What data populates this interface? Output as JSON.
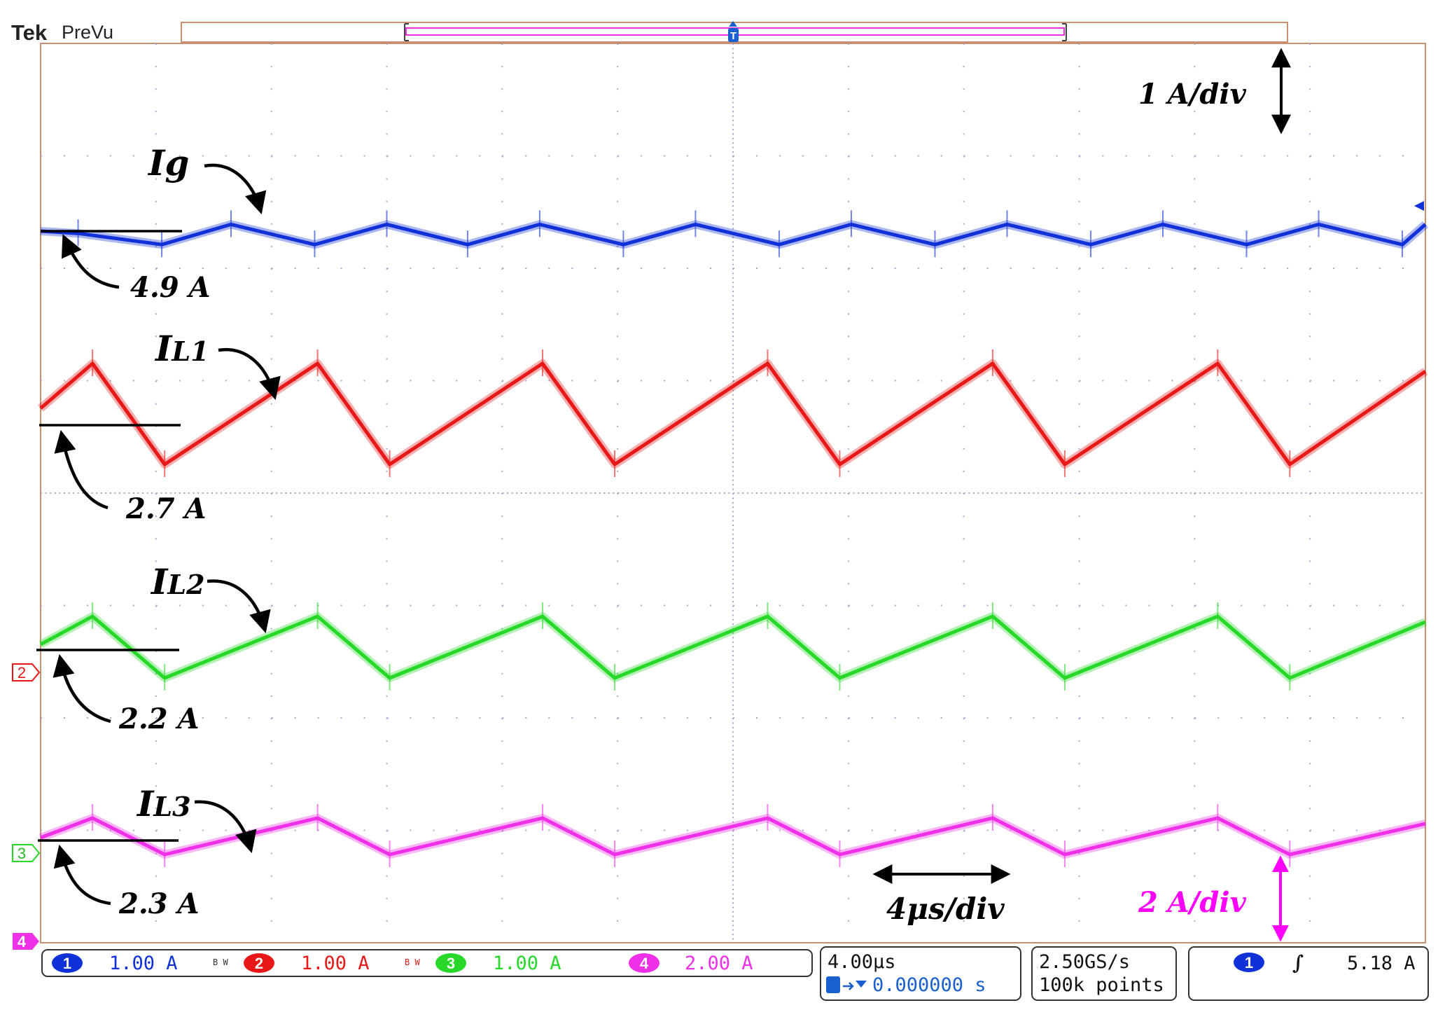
{
  "header": {
    "brand": "Tek",
    "mode": "PreVu",
    "trigger_marker": "T"
  },
  "annotations": {
    "vertical_scale_top": "1 A/div",
    "vertical_scale_bottom": "2 A/div",
    "time_scale": "4μs/div",
    "trace_labels": [
      {
        "main": "I",
        "sub": "g",
        "subscript": false
      },
      {
        "main": "I",
        "sub": "L1",
        "subscript": true
      },
      {
        "main": "I",
        "sub": "L2",
        "subscript": true
      },
      {
        "main": "I",
        "sub": "L3",
        "subscript": true
      }
    ],
    "reference_values": [
      "4.9 A",
      "2.7 A",
      "2.2 A",
      "2.3 A"
    ]
  },
  "status_bar": {
    "channels": [
      {
        "number": "1",
        "scale": "1.00 A",
        "bw": "B W",
        "color": "#1030d8"
      },
      {
        "number": "2",
        "scale": "1.00 A",
        "bw": "B W",
        "color": "#e81818"
      },
      {
        "number": "3",
        "scale": "1.00 A",
        "bw": "",
        "color": "#28d828"
      },
      {
        "number": "4",
        "scale": "2.00 A",
        "bw": "",
        "color": "#f030e8"
      }
    ],
    "timebase": "4.00μs",
    "position": "0.000000 s",
    "sample_rate": "2.50GS/s",
    "record_length": "100k points",
    "trigger_channel": "1",
    "trigger_slope": "∫",
    "trigger_level": "5.18 A"
  },
  "channel_markers": [
    "2",
    "3",
    "4"
  ],
  "colors": {
    "ch1": "#1030d8",
    "ch2": "#e81818",
    "ch3": "#28d828",
    "ch4": "#f030e8",
    "grid": "#a8a8c8",
    "frame": "#c89070"
  },
  "chart_data": {
    "type": "line",
    "title": "",
    "xlabel": "",
    "ylabel": "",
    "x_unit": "μs",
    "xlim": [
      -24,
      24
    ],
    "x_divisions": 12,
    "y_divisions": 8,
    "grid": true,
    "switching_period_us": 8,
    "series": [
      {
        "name": "Ig",
        "color": "#1030d8",
        "scale": "1 A/div",
        "x": [
          -24,
          -22.7,
          -19.8,
          -17.4,
          -14.5,
          -12.0,
          -9.2,
          -6.7,
          -3.8,
          -1.3,
          1.6,
          4.1,
          7.0,
          9.5,
          12.4,
          14.9,
          17.8,
          20.3,
          23.2,
          24
        ],
        "y": [
          4.9,
          4.88,
          4.78,
          4.96,
          4.78,
          4.96,
          4.78,
          4.96,
          4.78,
          4.96,
          4.78,
          4.96,
          4.78,
          4.96,
          4.78,
          4.96,
          4.78,
          4.96,
          4.78,
          4.96
        ]
      },
      {
        "name": "IL1",
        "color": "#e81818",
        "scale": "1 A/div",
        "x": [
          -24,
          -22.2,
          -19.7,
          -14.4,
          -11.9,
          -6.6,
          -4.1,
          1.2,
          3.7,
          9.0,
          11.5,
          16.8,
          19.3,
          24
        ],
        "y": [
          2.85,
          3.25,
          2.35,
          3.25,
          2.35,
          3.25,
          2.35,
          3.25,
          2.35,
          3.25,
          2.35,
          3.25,
          2.35,
          3.18
        ]
      },
      {
        "name": "IL2",
        "color": "#28d828",
        "scale": "1 A/div",
        "x": [
          -24,
          -22.2,
          -19.7,
          -14.4,
          -11.9,
          -6.6,
          -4.1,
          1.2,
          3.7,
          9.0,
          11.5,
          16.8,
          19.3,
          24
        ],
        "y": [
          2.25,
          2.5,
          1.95,
          2.5,
          1.95,
          2.5,
          1.95,
          2.5,
          1.95,
          2.5,
          1.95,
          2.5,
          1.95,
          2.45
        ]
      },
      {
        "name": "IL3",
        "color": "#f030e8",
        "scale": "2 A/div",
        "x": [
          -24,
          -22.2,
          -19.7,
          -14.4,
          -11.9,
          -6.6,
          -4.1,
          1.2,
          3.7,
          9.0,
          11.5,
          16.8,
          19.3,
          24
        ],
        "y": [
          2.35,
          2.7,
          2.05,
          2.7,
          2.05,
          2.7,
          2.05,
          2.7,
          2.05,
          2.7,
          2.05,
          2.7,
          2.05,
          2.6
        ]
      }
    ]
  }
}
